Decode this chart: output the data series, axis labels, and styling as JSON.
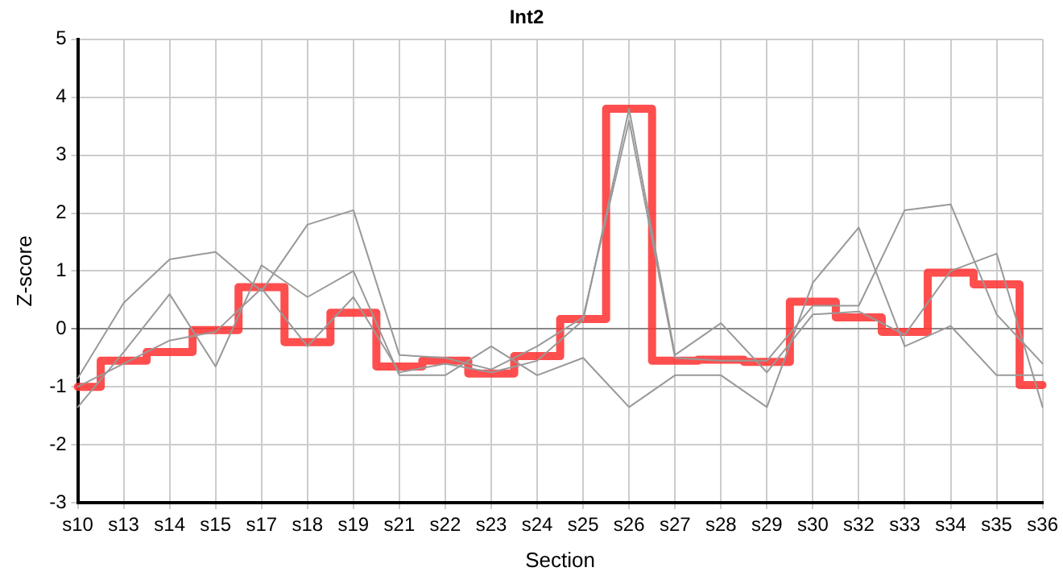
{
  "chart_data": {
    "type": "line",
    "title": "Int2",
    "xlabel": "Section",
    "ylabel": "Z-score",
    "categories": [
      "s10",
      "s13",
      "s14",
      "s15",
      "s17",
      "s18",
      "s19",
      "s21",
      "s22",
      "s23",
      "s24",
      "s25",
      "s26",
      "s27",
      "s28",
      "s29",
      "s30",
      "s32",
      "s33",
      "s34",
      "s35",
      "s36"
    ],
    "series": [
      {
        "color": "#999999",
        "values": [
          -0.85,
          0.45,
          1.2,
          1.33,
          0.65,
          1.8,
          2.05,
          -0.45,
          -0.5,
          -0.7,
          -0.3,
          0.2,
          3.6,
          -0.5,
          -0.55,
          -0.55,
          0.4,
          0.4,
          2.05,
          2.15,
          0.25,
          -0.6
        ]
      },
      {
        "color": "#999999",
        "values": [
          -1.35,
          -0.4,
          0.6,
          -0.65,
          1.1,
          0.55,
          1.0,
          -0.8,
          -0.8,
          -0.3,
          -0.8,
          -0.5,
          -1.35,
          -0.8,
          -0.8,
          -1.35,
          0.8,
          1.75,
          -0.3,
          0.05,
          -0.8,
          -0.8
        ]
      },
      {
        "color": "#999999",
        "values": [
          -1.0,
          -0.6,
          -0.2,
          -0.05,
          0.7,
          -0.3,
          0.55,
          -0.75,
          -0.6,
          -0.75,
          -0.55,
          0.15,
          3.8,
          -0.45,
          0.1,
          -0.75,
          0.25,
          0.3,
          -0.1,
          1.0,
          1.3,
          -1.35
        ]
      },
      {
        "color": "#ff3333",
        "type": "step",
        "values": [
          -1,
          -0.55,
          -0.4,
          -0.02,
          0.72,
          -0.23,
          0.28,
          -0.65,
          -0.55,
          -0.77,
          -0.47,
          0.17,
          3.8,
          -0.55,
          -0.53,
          -0.57,
          0.47,
          0.2,
          -0.05,
          0.97,
          0.77,
          -0.97
        ]
      }
    ],
    "ylim": [
      -3,
      5
    ],
    "yticks": [
      -3,
      -2,
      -1,
      0,
      1,
      2,
      3,
      4,
      5
    ],
    "grid": true,
    "legend": false,
    "marker": "none"
  }
}
